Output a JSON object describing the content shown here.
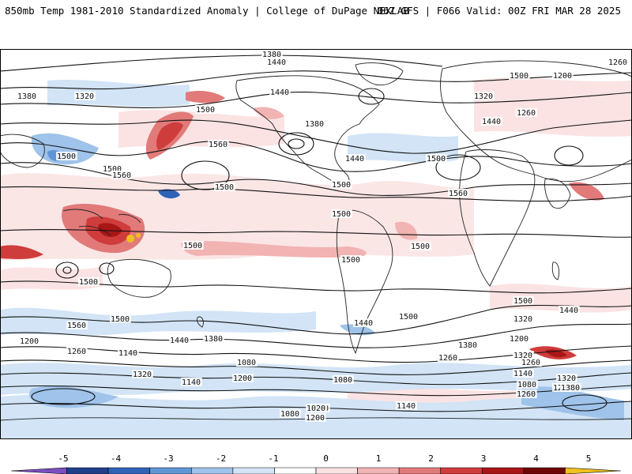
{
  "header": {
    "title_left": "850mb Temp 1981-2010 Standardized Anomaly | College of DuPage NEXLAB",
    "title_right": "06Z GFS | F066 Valid: 00Z FRI MAR 28 2025"
  },
  "map": {
    "contour_labels": [
      "1380",
      "1440",
      "1260",
      "1200",
      "1380",
      "1320",
      "1500",
      "1560",
      "1440",
      "1500",
      "1380",
      "1500",
      "1560",
      "1500",
      "1440",
      "1320",
      "1260",
      "1440",
      "1500",
      "1500",
      "1560",
      "1500",
      "1500",
      "1500",
      "1500",
      "1500",
      "1500",
      "1500",
      "1560",
      "1500",
      "1440",
      "1500",
      "1320",
      "1440",
      "1380",
      "1200",
      "1260",
      "1140",
      "1320",
      "1200",
      "1080",
      "1140",
      "1080",
      "1020",
      "1140",
      "1080",
      "1200",
      "1260",
      "1320",
      "1200",
      "1380",
      "1260",
      "1200",
      "1140",
      "1080",
      "1380",
      "1320",
      "1260",
      "1440",
      "1140"
    ]
  },
  "colorbar": {
    "ticks": [
      "-5",
      "-4",
      "-3",
      "-2",
      "-1",
      "0",
      "1",
      "2",
      "3",
      "4",
      "5"
    ],
    "colors": [
      "#7b4fc0",
      "#1f3f8a",
      "#2f63b8",
      "#5f97d6",
      "#9fc3ea",
      "#d2e4f6",
      "#ffffff",
      "#fbe3e3",
      "#f2b3b3",
      "#e27a7a",
      "#cf3c3c",
      "#a81616",
      "#6e0606",
      "#f0c020"
    ]
  }
}
